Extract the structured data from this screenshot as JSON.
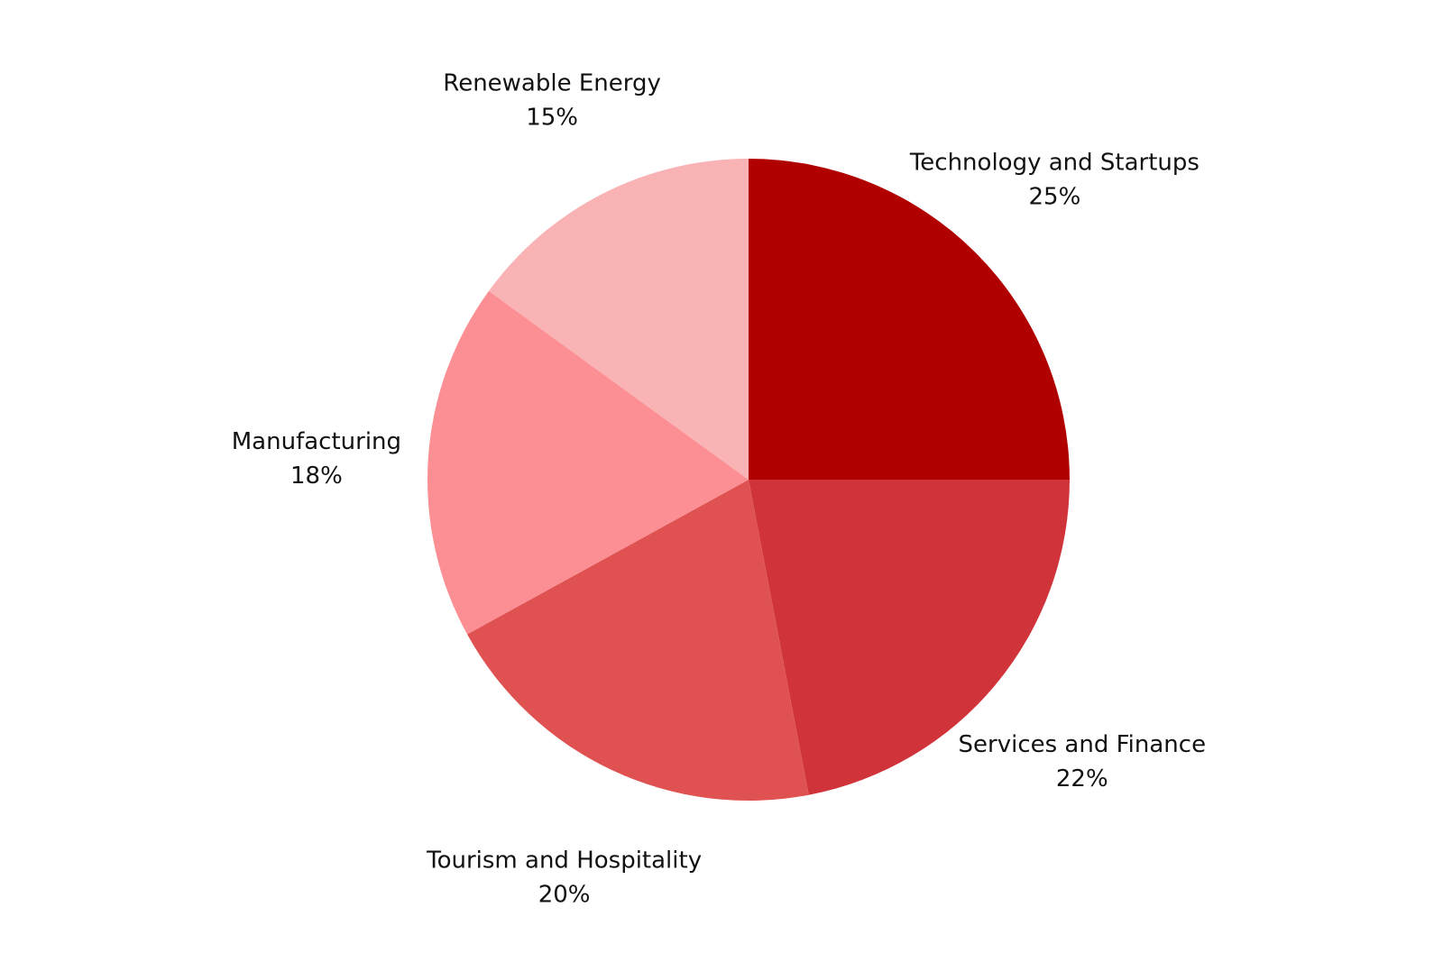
{
  "chart_data": {
    "type": "pie",
    "title": "",
    "start_angle_deg": 0,
    "direction": "clockwise",
    "slices": [
      {
        "label": "Technology and Startups",
        "value": 25,
        "value_label": "25%",
        "color": "#B00000"
      },
      {
        "label": "Services and Finance",
        "value": 22,
        "value_label": "22%",
        "color": "#D0343A"
      },
      {
        "label": "Tourism and Hospitality",
        "value": 20,
        "value_label": "20%",
        "color": "#E05252"
      },
      {
        "label": "Manufacturing",
        "value": 18,
        "value_label": "18%",
        "color": "#FC8F93"
      },
      {
        "label": "Renewable Energy",
        "value": 15,
        "value_label": "15%",
        "color": "#F9B3B5"
      }
    ]
  }
}
